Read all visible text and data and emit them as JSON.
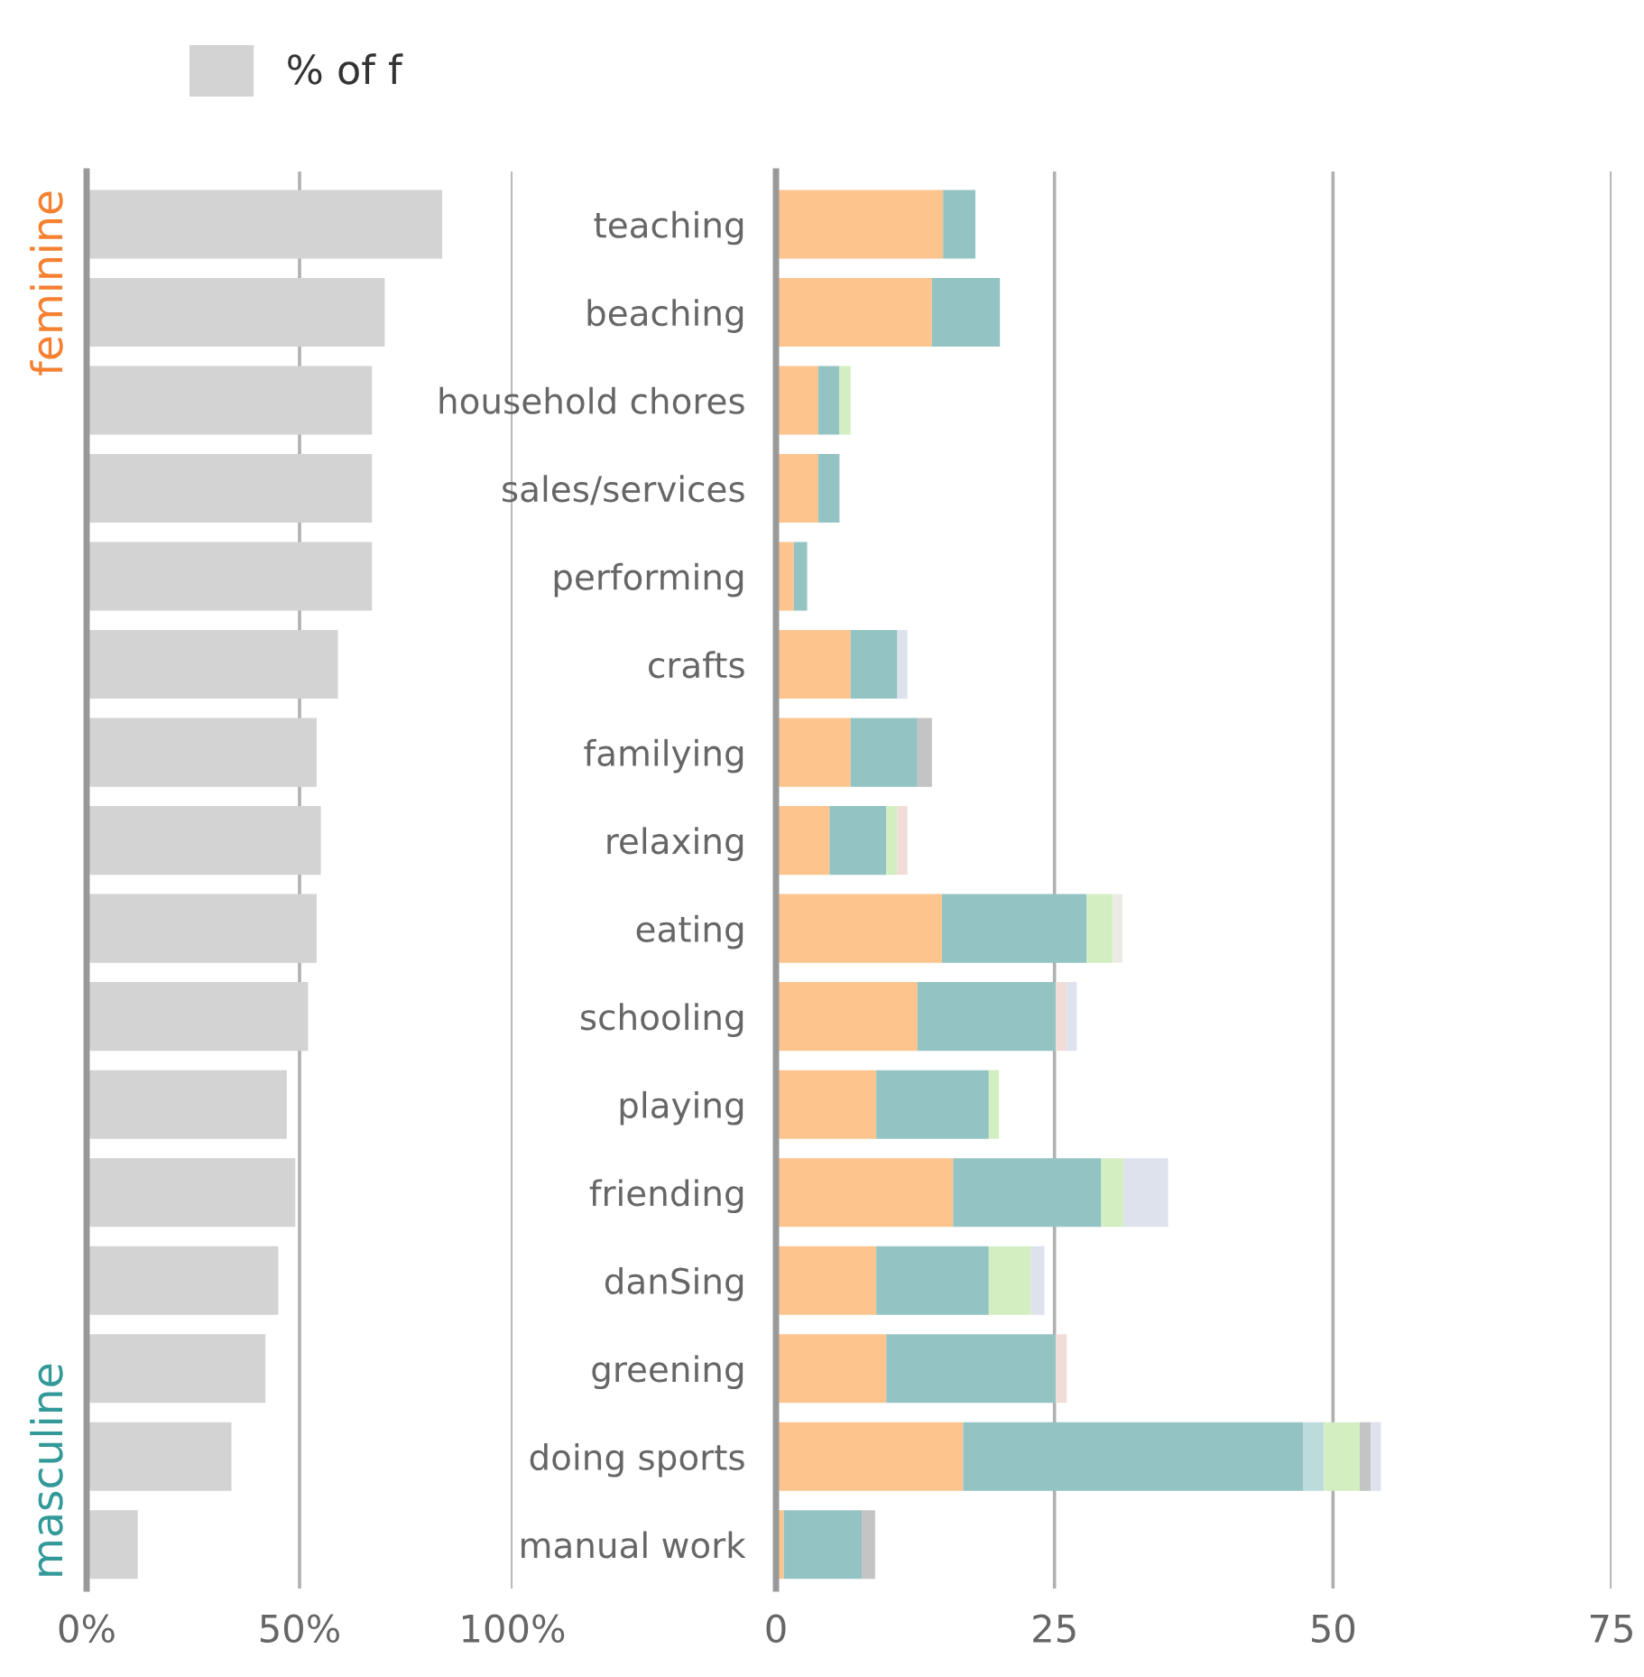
{
  "chart_data": [
    {
      "type": "bar",
      "orientation": "horizontal",
      "categories": [
        null,
        null,
        null,
        null,
        null,
        null,
        null,
        null,
        null,
        null,
        null,
        null,
        null,
        null,
        null,
        null
      ],
      "series": [
        {
          "name": "% of f",
          "color": "#d3d3d3",
          "values": [
            83.5,
            70,
            67,
            67,
            67,
            59,
            54,
            55,
            54,
            52,
            47,
            49,
            45,
            42,
            34,
            12
          ]
        }
      ],
      "xlim": [
        0,
        100
      ],
      "xticks": [
        {
          "value": 0,
          "label": "0%"
        },
        {
          "value": 50,
          "label": "50%"
        },
        {
          "value": 100,
          "label": "100%"
        }
      ],
      "grid": "x",
      "legend": "top left",
      "tick_labels": "x",
      "annotations": [
        "feminine",
        "masculine"
      ]
    },
    {
      "type": "bar",
      "orientation": "horizontal",
      "stacked": true,
      "categories": [
        "teaching",
        "beaching",
        "household chores",
        "sales/services",
        "performing",
        "crafts",
        "familying",
        "relaxing",
        "eating",
        "schooling",
        "playing",
        "friending",
        "danSing",
        "greening",
        "doing sports",
        "manual work"
      ],
      "series": [
        {
          "color": "#fdc48e",
          "values": [
            15,
            14,
            3.8,
            3.8,
            1.6,
            6.7,
            6.7,
            4.8,
            14.9,
            12.7,
            9,
            15.9,
            9,
            9.9,
            16.8,
            0.7
          ]
        },
        {
          "color": "#93c3c3",
          "values": [
            2.9,
            6.1,
            1.9,
            1.9,
            1.2,
            4.2,
            6,
            5.1,
            13,
            12.4,
            10.1,
            13.3,
            10.1,
            15.2,
            30.5,
            7
          ]
        },
        {
          "color": "#bcdcdc",
          "values": [
            null,
            null,
            null,
            null,
            null,
            null,
            null,
            null,
            null,
            null,
            null,
            null,
            null,
            null,
            1.9,
            null
          ]
        },
        {
          "color": "#d3efc2",
          "values": [
            null,
            null,
            1,
            null,
            null,
            null,
            null,
            1,
            2.3,
            null,
            0.9,
            2,
            3.8,
            null,
            3.2,
            null
          ]
        },
        {
          "color": "#ebebe3",
          "values": [
            null,
            null,
            null,
            null,
            null,
            null,
            null,
            null,
            0.9,
            null,
            null,
            null,
            null,
            null,
            null,
            null
          ]
        },
        {
          "color": "#c4c4c4",
          "values": [
            null,
            null,
            null,
            null,
            null,
            null,
            1.3,
            null,
            null,
            null,
            null,
            null,
            null,
            null,
            1,
            1.2
          ]
        },
        {
          "color": "#f2dcd8",
          "values": [
            null,
            null,
            null,
            null,
            null,
            null,
            null,
            0.9,
            null,
            1,
            null,
            null,
            null,
            1,
            null,
            null
          ]
        },
        {
          "color": "#dde2ec",
          "values": [
            null,
            null,
            null,
            null,
            null,
            0.9,
            null,
            null,
            null,
            0.9,
            null,
            4,
            1.2,
            null,
            0.9,
            null
          ]
        }
      ],
      "xlim": [
        0,
        75
      ],
      "xticks": [
        0,
        25,
        50,
        75
      ],
      "grid": "x"
    }
  ]
}
